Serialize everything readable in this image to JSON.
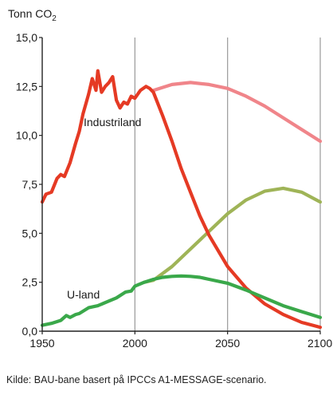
{
  "chart_data": {
    "type": "line",
    "ylabel": "Tonn CO",
    "ylabel_sub": "2",
    "xlim": [
      1950,
      2100
    ],
    "ylim": [
      0,
      15
    ],
    "x_ticks": [
      1950,
      2000,
      2050,
      2100
    ],
    "x_tick_labels": [
      "1950",
      "2000",
      "2050",
      "2100"
    ],
    "y_ticks": [
      0,
      2.5,
      5,
      7.5,
      10,
      12.5,
      15
    ],
    "y_tick_labels": [
      "0,0",
      "2,5",
      "5,0",
      "7,5",
      "10,0",
      "12,5",
      "15,0"
    ],
    "grid": "vertical-only",
    "series": [
      {
        "name": "Industriland",
        "color": "#e53a24",
        "x": [
          1950,
          1952,
          1955,
          1958,
          1960,
          1962,
          1965,
          1968,
          1970,
          1972,
          1975,
          1977,
          1979,
          1980,
          1982,
          1984,
          1986,
          1988,
          1990,
          1992,
          1994,
          1996,
          1998,
          2000,
          2003,
          2006,
          2008,
          2010,
          2015,
          2020,
          2025,
          2030,
          2035,
          2040,
          2050,
          2060,
          2070,
          2080,
          2090,
          2100
        ],
        "y": [
          6.6,
          7.0,
          7.1,
          7.8,
          8.0,
          7.9,
          8.6,
          9.6,
          10.2,
          11.1,
          12.1,
          12.9,
          12.3,
          13.3,
          12.2,
          12.5,
          12.7,
          13.0,
          11.8,
          11.4,
          11.7,
          11.6,
          12.0,
          11.9,
          12.3,
          12.5,
          12.4,
          12.2,
          11.0,
          9.7,
          8.3,
          7.1,
          5.9,
          4.9,
          3.3,
          2.2,
          1.4,
          0.85,
          0.45,
          0.2
        ]
      },
      {
        "name": "",
        "color": "#f0858a",
        "x": [
          2010,
          2020,
          2030,
          2040,
          2050,
          2060,
          2070,
          2080,
          2090,
          2100
        ],
        "y": [
          12.3,
          12.6,
          12.7,
          12.6,
          12.4,
          12.0,
          11.5,
          10.9,
          10.3,
          9.7
        ]
      },
      {
        "name": "U-land",
        "color": "#3aa84a",
        "x": [
          1950,
          1955,
          1960,
          1963,
          1965,
          1968,
          1970,
          1975,
          1980,
          1985,
          1990,
          1995,
          1998,
          2000,
          2005,
          2010,
          2015,
          2020,
          2025,
          2030,
          2035,
          2040,
          2050,
          2060,
          2070,
          2080,
          2090,
          2100
        ],
        "y": [
          0.3,
          0.4,
          0.55,
          0.8,
          0.7,
          0.85,
          0.9,
          1.2,
          1.3,
          1.5,
          1.7,
          2.0,
          2.05,
          2.3,
          2.5,
          2.65,
          2.75,
          2.8,
          2.82,
          2.8,
          2.75,
          2.65,
          2.45,
          2.1,
          1.7,
          1.3,
          1.0,
          0.7
        ]
      },
      {
        "name": "",
        "color": "#9fb457",
        "x": [
          2005,
          2010,
          2020,
          2030,
          2040,
          2050,
          2060,
          2070,
          2080,
          2090,
          2100
        ],
        "y": [
          2.5,
          2.6,
          3.3,
          4.2,
          5.1,
          6.0,
          6.7,
          7.15,
          7.3,
          7.1,
          6.6
        ]
      }
    ]
  },
  "caption": "Kilde: BAU-bane basert på IPCCs A1-MESSAGE-scenario."
}
